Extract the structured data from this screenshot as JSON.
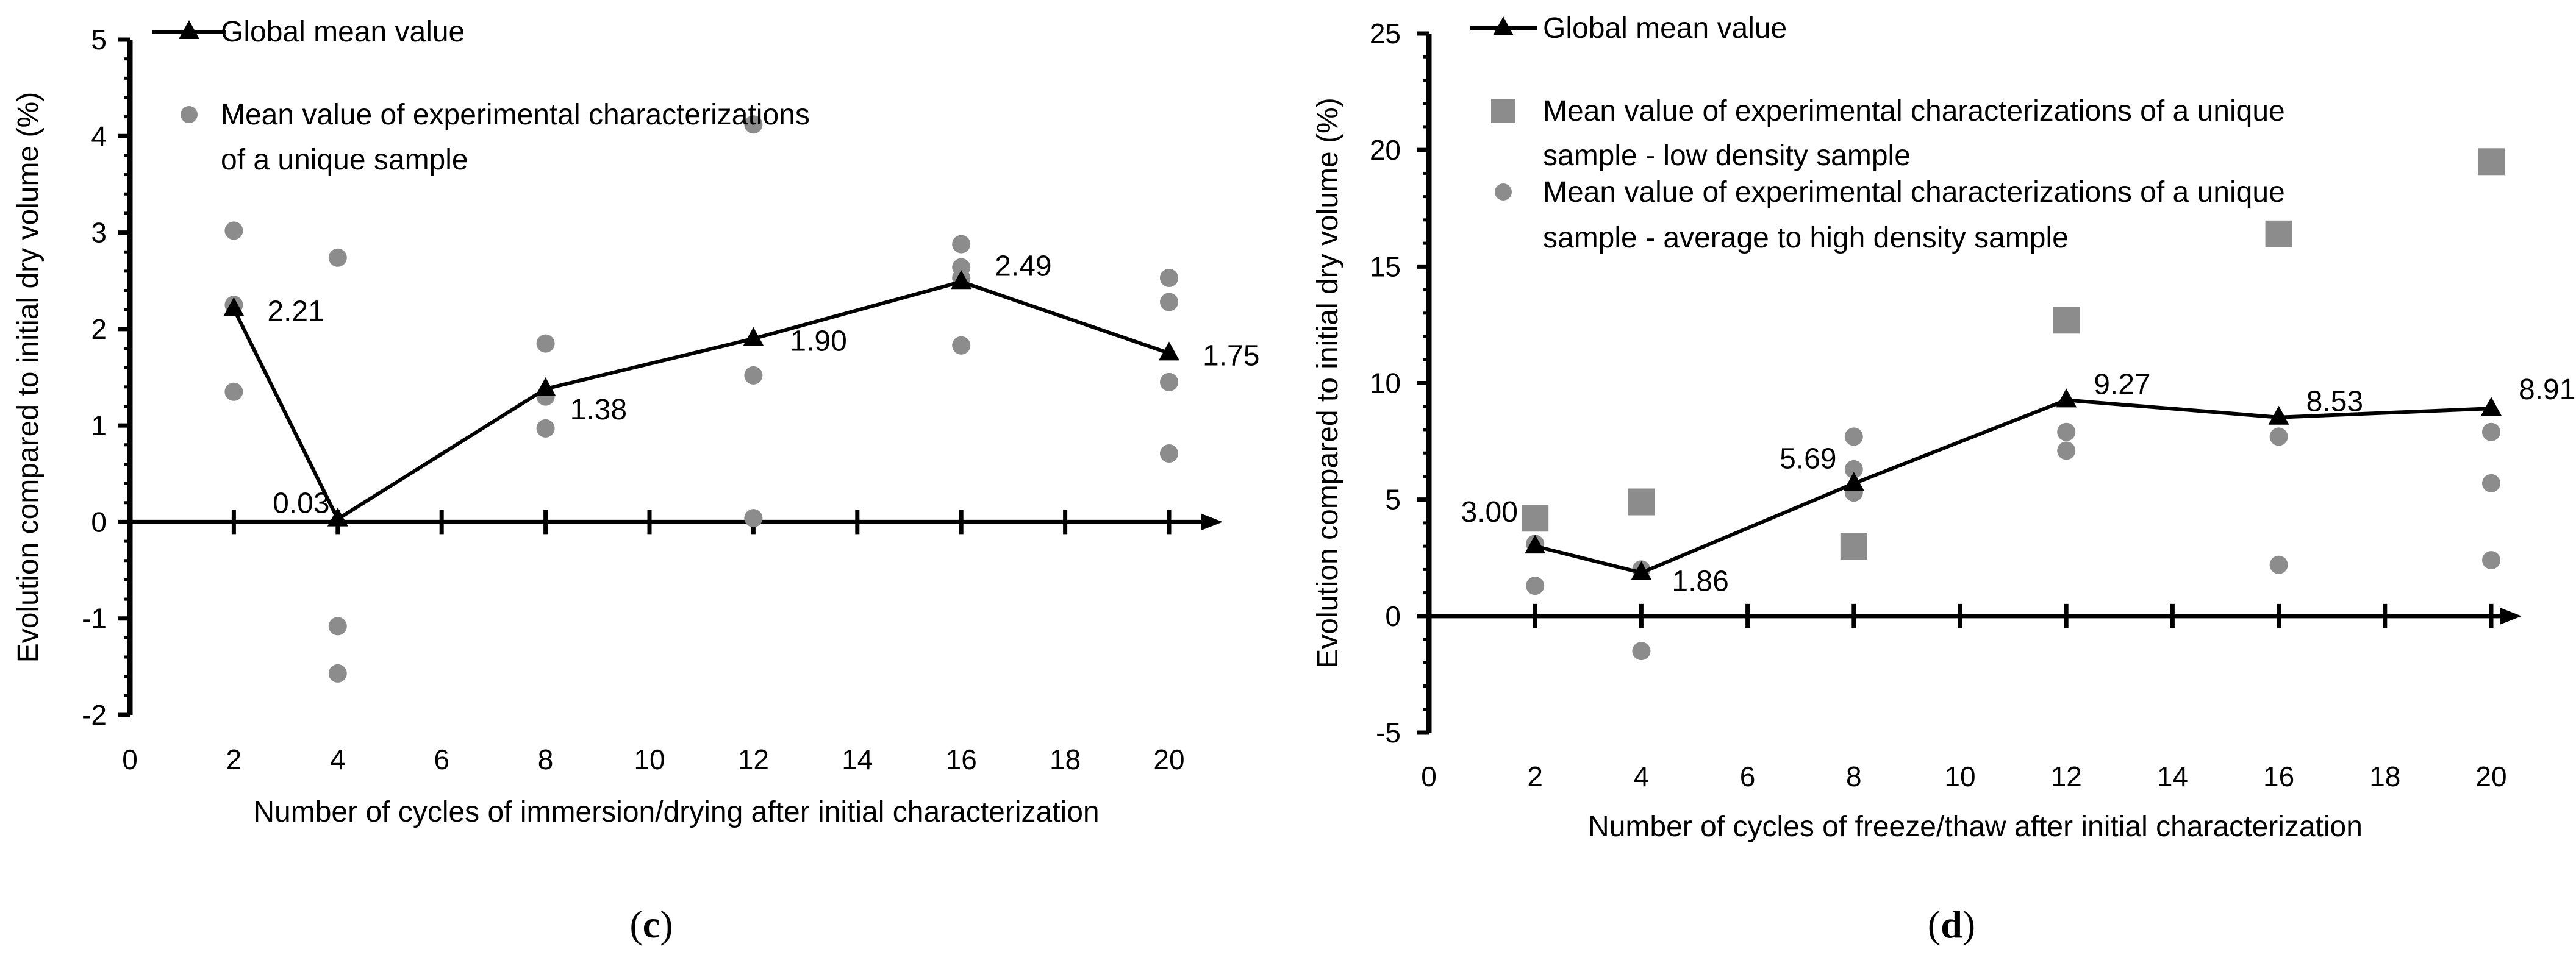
{
  "chart_data": [
    {
      "id": "c",
      "type": "scatter+line",
      "panel_label_open": "(",
      "panel_label_letter": "c",
      "panel_label_close": ")",
      "xlabel": "Number of cycles of immersion/drying  after initial characterization",
      "ylabel": "Evolution compared to initial dry volume (%)",
      "xlim": [
        0,
        20
      ],
      "ylim": [
        -2,
        5
      ],
      "x_ticks": [
        0,
        2,
        4,
        6,
        8,
        10,
        12,
        14,
        16,
        18,
        20
      ],
      "y_ticks": [
        -2,
        -1,
        0,
        1,
        2,
        3,
        4,
        5
      ],
      "series": [
        {
          "name": "Global mean value",
          "kind": "line",
          "marker": "triangle",
          "x": [
            2,
            4,
            8,
            12,
            16,
            20
          ],
          "values": [
            2.21,
            0.03,
            1.38,
            1.9,
            2.49,
            1.75
          ],
          "labels": [
            "2.21",
            "0.03",
            "1.38",
            "1.90",
            "2.49",
            "1.75"
          ]
        },
        {
          "name": "Mean value of experimental characterizations",
          "name_line2": "of a unique sample",
          "kind": "scatter",
          "marker": "circle",
          "points": [
            [
              2,
              3.02
            ],
            [
              2,
              2.25
            ],
            [
              2,
              1.35
            ],
            [
              4,
              2.74
            ],
            [
              4,
              -1.08
            ],
            [
              4,
              -1.57
            ],
            [
              8,
              1.85
            ],
            [
              8,
              1.3
            ],
            [
              8,
              0.97
            ],
            [
              12,
              4.12
            ],
            [
              12,
              1.52
            ],
            [
              12,
              0.04
            ],
            [
              16,
              2.88
            ],
            [
              16,
              2.64
            ],
            [
              16,
              2.53
            ],
            [
              16,
              1.83
            ],
            [
              20,
              2.53
            ],
            [
              20,
              2.28
            ],
            [
              20,
              1.45
            ],
            [
              20,
              0.71
            ]
          ]
        }
      ]
    },
    {
      "id": "d",
      "type": "scatter+line",
      "panel_label_open": "(",
      "panel_label_letter": "d",
      "panel_label_close": ")",
      "xlabel": "Number  of cycles of freeze/thaw  after initial characterization",
      "ylabel": "Evolution compared to initial dry volume (%)",
      "xlim": [
        0,
        20
      ],
      "ylim": [
        -5,
        25
      ],
      "x_ticks": [
        0,
        2,
        4,
        6,
        8,
        10,
        12,
        14,
        16,
        18,
        20
      ],
      "y_ticks": [
        -5,
        0,
        5,
        10,
        15,
        20,
        25
      ],
      "series": [
        {
          "name": "Global mean value",
          "kind": "line",
          "marker": "triangle",
          "x": [
            2,
            4,
            8,
            12,
            16,
            20
          ],
          "values": [
            3.0,
            1.86,
            5.69,
            9.27,
            8.53,
            8.91
          ],
          "labels": [
            "3.00",
            "1.86",
            "5.69",
            "9.27",
            "8.53",
            "8.91"
          ]
        },
        {
          "name": "Mean value of experimental characterizations of a unique",
          "name_line2": "sample - low density sample",
          "kind": "scatter",
          "marker": "square",
          "points": [
            [
              2,
              4.2
            ],
            [
              4,
              4.9
            ],
            [
              8,
              3.0
            ],
            [
              12,
              12.7
            ],
            [
              16,
              16.4
            ],
            [
              20,
              19.5
            ]
          ]
        },
        {
          "name": "Mean value of experimental characterizations of a unique",
          "name_line2": "sample - average to high density sample",
          "kind": "scatter",
          "marker": "circle",
          "points": [
            [
              2,
              3.1
            ],
            [
              2,
              1.3
            ],
            [
              4,
              2.0
            ],
            [
              4,
              -1.5
            ],
            [
              8,
              7.7
            ],
            [
              8,
              6.3
            ],
            [
              8,
              5.3
            ],
            [
              12,
              7.9
            ],
            [
              12,
              7.1
            ],
            [
              16,
              7.7
            ],
            [
              16,
              2.2
            ],
            [
              20,
              7.9
            ],
            [
              20,
              5.7
            ],
            [
              20,
              2.4
            ]
          ]
        }
      ]
    }
  ]
}
